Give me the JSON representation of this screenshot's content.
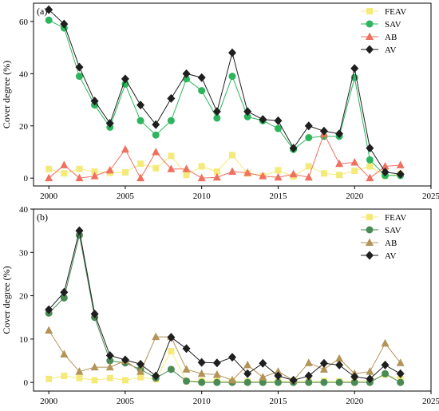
{
  "colors": {
    "FEAV": "#f4ea7a",
    "SAV": "#2db55d",
    "AB": "#f07060",
    "AV": "#1f1f1f",
    "SAV_b": "#4a8a55",
    "AB_b": "#b39458"
  },
  "chart_data": [
    {
      "type": "line",
      "panel_label": "(a)",
      "ylabel": "Cover degree (%)",
      "xlim": [
        1999,
        2025
      ],
      "ylim": [
        -3,
        67
      ],
      "xticks": [
        2000,
        2005,
        2010,
        2015,
        2020,
        2025
      ],
      "yticks": [
        0,
        20,
        40,
        60
      ],
      "legend": "top-right",
      "x": [
        2000,
        2001,
        2002,
        2003,
        2004,
        2005,
        2006,
        2007,
        2008,
        2009,
        2010,
        2011,
        2012,
        2013,
        2014,
        2015,
        2016,
        2017,
        2018,
        2019,
        2020,
        2021,
        2022,
        2023
      ],
      "series": [
        {
          "name": "FEAV",
          "marker": "square",
          "color_key": "FEAV",
          "values": [
            3.5,
            1.8,
            3.5,
            2.5,
            2.0,
            2.2,
            5.5,
            3.8,
            8.5,
            1.2,
            4.5,
            2.5,
            8.8,
            1.8,
            0.8,
            3.0,
            0.6,
            4.5,
            1.8,
            1.2,
            2.8,
            4.5,
            0.8,
            1.5
          ]
        },
        {
          "name": "SAV",
          "marker": "circle",
          "color_key": "SAV",
          "values": [
            60.5,
            57.5,
            39,
            28,
            19.5,
            36,
            22,
            16.5,
            22,
            38,
            33.5,
            23,
            39,
            23.5,
            22,
            19,
            11,
            15.5,
            16,
            16,
            38.5,
            7,
            1,
            1
          ]
        },
        {
          "name": "AB",
          "marker": "triangle",
          "color_key": "AB",
          "values": [
            0,
            5,
            0,
            0.8,
            3,
            11,
            0,
            10,
            3.5,
            3.5,
            0,
            0.3,
            2.5,
            2,
            0.8,
            0.3,
            1.5,
            0.3,
            17,
            5.5,
            6,
            0,
            4.5,
            5
          ]
        },
        {
          "name": "AV",
          "marker": "diamond",
          "color_key": "AV",
          "values": [
            64.5,
            59,
            42.5,
            29.5,
            21,
            38,
            28,
            20.5,
            30.5,
            40,
            38.5,
            25.5,
            48,
            25.5,
            22.5,
            22,
            11.5,
            20,
            18,
            17,
            42,
            11.5,
            2.3,
            1.5
          ]
        }
      ]
    },
    {
      "type": "line",
      "panel_label": "(b)",
      "ylabel": "Cover degree (%)",
      "xlim": [
        1999,
        2025
      ],
      "ylim": [
        -2,
        40
      ],
      "xticks": [
        2000,
        2005,
        2010,
        2015,
        2020,
        2025
      ],
      "yticks": [
        0,
        10,
        20,
        30,
        40
      ],
      "legend": "top-right",
      "x": [
        2000,
        2001,
        2002,
        2003,
        2004,
        2005,
        2006,
        2007,
        2008,
        2009,
        2010,
        2011,
        2012,
        2013,
        2014,
        2015,
        2016,
        2017,
        2018,
        2019,
        2020,
        2021,
        2022,
        2023
      ],
      "series": [
        {
          "name": "FEAV",
          "marker": "square",
          "color_key": "FEAV",
          "values": [
            0.8,
            1.5,
            1.0,
            0.5,
            1.0,
            0.5,
            1.2,
            0.7,
            7.2,
            0.3,
            0.3,
            0.3,
            0.2,
            0.2,
            0.2,
            0.2,
            0.2,
            0.2,
            0.3,
            0.2,
            0.3,
            0.3,
            1.8,
            0.8
          ]
        },
        {
          "name": "SAV",
          "marker": "circle",
          "color_key": "SAV_b",
          "values": [
            16,
            19.5,
            34,
            15,
            5,
            4.5,
            3,
            1,
            3,
            0.3,
            0,
            0,
            0,
            0,
            0,
            0,
            0,
            0,
            0,
            0,
            0,
            0,
            2,
            0
          ]
        },
        {
          "name": "AB",
          "marker": "triangle",
          "color_key": "AB_b",
          "values": [
            12,
            6.5,
            2.5,
            3.5,
            3.5,
            5,
            2.5,
            10.5,
            10.5,
            3,
            2,
            1.8,
            0.5,
            4,
            1.2,
            2.5,
            0.5,
            4.5,
            3,
            5.5,
            2,
            2.5,
            9,
            4.5
          ]
        },
        {
          "name": "AV",
          "marker": "diamond",
          "color_key": "AV",
          "values": [
            16.8,
            20.8,
            35,
            15.8,
            6.2,
            5.2,
            4.2,
            1.5,
            10.4,
            7.8,
            4.6,
            4.5,
            5.8,
            2,
            4.4,
            1.5,
            0.5,
            1.5,
            4.4,
            4,
            1.3,
            0.8,
            4,
            2
          ]
        }
      ]
    }
  ]
}
